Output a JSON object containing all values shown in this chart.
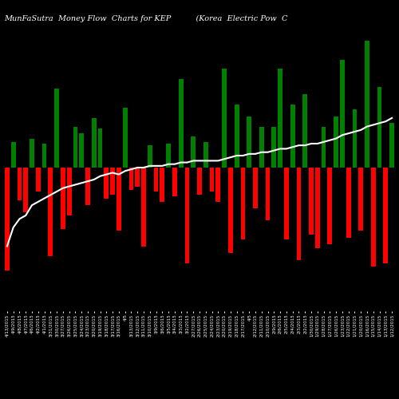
{
  "title": "MunFaSutra  Money Flow  Charts for KEP          (Korea  Electric Pow  C",
  "background_color": "#000000",
  "line_color": "#ffffff",
  "categories": [
    "4/13/2015",
    "4/9/2015",
    "4/8/2015",
    "4/7/2015",
    "4/6/2015",
    "4/2/2015",
    "4/1/2015",
    "3/31/2015",
    "3/30/2015",
    "3/27/2015",
    "3/26/2015",
    "3/25/2015",
    "3/24/2015",
    "3/23/2015",
    "3/20/2015",
    "3/19/2015",
    "3/18/2015",
    "3/17/2015",
    "3/16/2015",
    "4/5",
    "3/13/2015",
    "3/12/2015",
    "3/11/2015",
    "3/10/2015",
    "3/9/2015",
    "3/6/2015",
    "3/5/2015",
    "3/4/2015",
    "3/3/2015",
    "3/2/2015",
    "2/27/2015",
    "2/26/2015",
    "2/25/2015",
    "2/24/2015",
    "2/23/2015",
    "2/20/2015",
    "2/19/2015",
    "2/18/2015",
    "2/17/2015",
    "4/5",
    "2/12/2015",
    "2/11/2015",
    "2/10/2015",
    "2/9/2015",
    "2/6/2015",
    "2/5/2015",
    "2/4/2015",
    "2/3/2015",
    "2/2/2015",
    "1/30/2015",
    "1/29/2015",
    "1/28/2015",
    "1/27/2015",
    "1/26/2015",
    "1/23/2015",
    "1/22/2015",
    "1/21/2015",
    "1/20/2015",
    "1/16/2015",
    "1/15/2015",
    "1/14/2015",
    "1/13/2015",
    "1/12/2015"
  ],
  "bar_heights": [
    -300,
    75,
    -95,
    -130,
    85,
    -70,
    70,
    -260,
    230,
    -180,
    -140,
    120,
    100,
    -110,
    145,
    115,
    -90,
    -80,
    -185,
    175,
    -65,
    -55,
    -230,
    65,
    -70,
    -100,
    70,
    -85,
    260,
    -280,
    90,
    -80,
    75,
    -70,
    -100,
    290,
    -250,
    185,
    -210,
    150,
    -120,
    120,
    -155,
    120,
    290,
    -210,
    185,
    -270,
    215,
    -195,
    -235,
    120,
    -225,
    150,
    315,
    -205,
    170,
    -185,
    370,
    -290,
    235,
    -280,
    130
  ],
  "bar_colors": [
    "red",
    "green",
    "red",
    "red",
    "green",
    "red",
    "green",
    "red",
    "green",
    "red",
    "red",
    "green",
    "green",
    "red",
    "green",
    "green",
    "red",
    "red",
    "red",
    "green",
    "red",
    "red",
    "red",
    "green",
    "red",
    "red",
    "green",
    "red",
    "green",
    "red",
    "green",
    "red",
    "green",
    "red",
    "red",
    "green",
    "red",
    "green",
    "red",
    "green",
    "red",
    "green",
    "red",
    "green",
    "green",
    "red",
    "green",
    "red",
    "green",
    "red",
    "red",
    "green",
    "red",
    "green",
    "green",
    "red",
    "green",
    "red",
    "green",
    "red",
    "green",
    "red",
    "green"
  ],
  "line_values": [
    -230,
    -175,
    -150,
    -140,
    -110,
    -100,
    -90,
    -80,
    -70,
    -60,
    -55,
    -50,
    -45,
    -40,
    -35,
    -25,
    -20,
    -15,
    -20,
    -10,
    -5,
    0,
    0,
    5,
    5,
    5,
    10,
    10,
    15,
    15,
    20,
    20,
    20,
    20,
    20,
    25,
    30,
    35,
    35,
    40,
    40,
    45,
    45,
    50,
    55,
    55,
    60,
    65,
    65,
    70,
    70,
    75,
    80,
    85,
    95,
    100,
    105,
    110,
    120,
    125,
    130,
    135,
    145
  ],
  "ylim": [
    -420,
    420
  ],
  "title_fontsize": 7,
  "tick_fontsize": 4.0,
  "figsize": [
    5.0,
    5.0
  ],
  "dpi": 100
}
